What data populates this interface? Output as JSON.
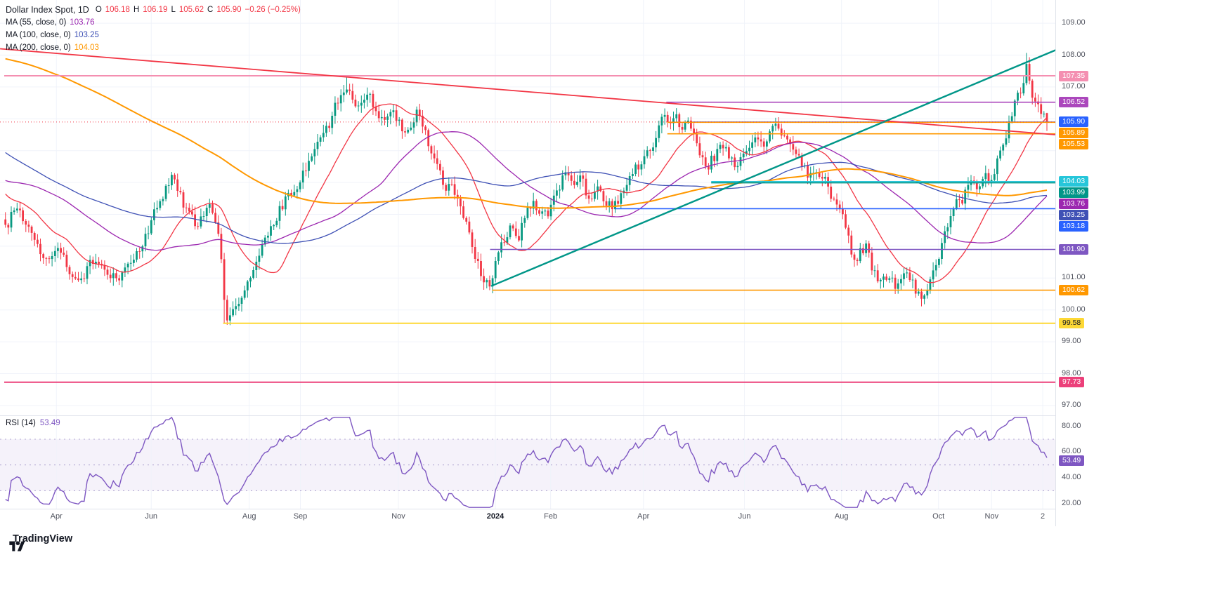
{
  "header": {
    "title": "Dollar Index Spot, 1D",
    "ohlc": [
      {
        "label": "O",
        "value": "106.18"
      },
      {
        "label": "H",
        "value": "106.19"
      },
      {
        "label": "L",
        "value": "105.62"
      },
      {
        "label": "C",
        "value": "105.90"
      }
    ],
    "change": "−0.26 (−0.25%)",
    "values_color": "#f23645",
    "change_color": "#f23645"
  },
  "indicators": [
    {
      "label": "MA (55, close, 0)",
      "value": "103.76",
      "color": "#9c27b0"
    },
    {
      "label": "MA (100, close, 0)",
      "value": "103.25",
      "color": "#3f51b5"
    },
    {
      "label": "MA (200, close, 0)",
      "value": "104.03",
      "color": "#ff9800"
    }
  ],
  "rsi_indicator": {
    "label": "RSI (14)",
    "value": "53.49",
    "color": "#7e57c2"
  },
  "footer": {
    "brand": "TradingView"
  },
  "chart_data": {
    "type": "candlestick",
    "title": "Dollar Index Spot",
    "interval": "1D",
    "last_candle": {
      "open": 106.18,
      "high": 106.19,
      "low": 105.62,
      "close": 105.9,
      "change": -0.26,
      "change_pct": -0.25
    },
    "price_axis": {
      "min": 96.69,
      "max": 109.73,
      "ticks": [
        "109.00",
        "108.00",
        "107.00",
        "101.00",
        "100.00",
        "99.00",
        "98.00",
        "97.00"
      ],
      "grid": [
        97,
        98,
        99,
        100,
        101,
        102,
        103,
        104,
        105,
        106,
        107,
        108,
        109
      ]
    },
    "time_axis": [
      {
        "label": "Apr",
        "f": 0.05
      },
      {
        "label": "Jun",
        "f": 0.141
      },
      {
        "label": "Aug",
        "f": 0.235
      },
      {
        "label": "Sep",
        "f": 0.284
      },
      {
        "label": "Nov",
        "f": 0.378
      },
      {
        "label": "2024",
        "f": 0.471,
        "major": true
      },
      {
        "label": "Feb",
        "f": 0.524
      },
      {
        "label": "Apr",
        "f": 0.613
      },
      {
        "label": "Jun",
        "f": 0.71
      },
      {
        "label": "Aug",
        "f": 0.803
      },
      {
        "label": "Oct",
        "f": 0.896
      },
      {
        "label": "Nov",
        "f": 0.947
      },
      {
        "label": "2",
        "f": 0.996
      }
    ],
    "levels": [
      {
        "price": 107.35,
        "color": "#f48fb1",
        "from": 0,
        "width": 2
      },
      {
        "price": 106.52,
        "color": "#ab47bc",
        "from": 0.635,
        "width": 1.6
      },
      {
        "price": 105.9,
        "color": "#2962ff",
        "from": 0.66,
        "width": 1.6
      },
      {
        "price": 105.89,
        "color": "#ff9800",
        "from": 0.636,
        "width": 1.6
      },
      {
        "price": 105.53,
        "color": "#ff9800",
        "from": 0.636,
        "width": 1.6
      },
      {
        "price": 104.03,
        "color": "#26c6da",
        "from": 0.678,
        "width": 1.6
      },
      {
        "price": 103.99,
        "color": "#009688",
        "from": 0.678,
        "width": 1.6
      },
      {
        "price": 103.18,
        "color": "#2962ff",
        "from": 0.586,
        "width": 1.6
      },
      {
        "price": 101.9,
        "color": "#7e57c2",
        "from": 0.466,
        "width": 1.6
      },
      {
        "price": 100.62,
        "color": "#ff9800",
        "from": 0.468,
        "width": 1.6
      },
      {
        "price": 99.58,
        "color": "#fdd835",
        "from": 0.21,
        "width": 2
      },
      {
        "price": 97.73,
        "color": "#ec407a",
        "from": 0,
        "width": 2
      }
    ],
    "price_line": {
      "price": 105.9,
      "color": "#f23645"
    },
    "trendlines": [
      {
        "color": "#f23645",
        "x1": -0.004,
        "p1": 108.2,
        "x2": 1.008,
        "p2": 105.5,
        "width": 1.8
      },
      {
        "color": "#009688",
        "x1": 0.467,
        "p1": 100.75,
        "x2": 1.015,
        "p2": 108.25,
        "width": 2.4
      }
    ],
    "moving_averages": [
      {
        "period": 20,
        "color": "#f23645",
        "width": 1.3
      },
      {
        "period": 55,
        "color": "#9c27b0",
        "width": 1.3
      },
      {
        "period": 100,
        "color": "#3f51b5",
        "width": 1.3
      },
      {
        "period": 200,
        "color": "#ff9800",
        "width": 2
      }
    ],
    "badges": [
      {
        "label": "107.35",
        "price": 107.35,
        "bg": "#f48fb1"
      },
      {
        "label": "106.52",
        "price": 106.52,
        "bg": "#ab47bc"
      },
      {
        "label": "105.90",
        "price": 105.9,
        "bg": "#2962ff"
      },
      {
        "label": "105.89",
        "price": 105.89,
        "bg": "#ff9800"
      },
      {
        "label": "105.53",
        "price": 105.53,
        "bg": "#ff9800"
      },
      {
        "label": "104.03",
        "price": 104.03,
        "bg": "#26c6da"
      },
      {
        "label": "103.99",
        "price": 103.99,
        "bg": "#009688"
      },
      {
        "label": "103.76",
        "price": 103.76,
        "bg": "#9c27b0"
      },
      {
        "label": "103.25",
        "price": 103.25,
        "bg": "#3f51b5"
      },
      {
        "label": "103.18",
        "price": 103.18,
        "bg": "#2962ff"
      },
      {
        "label": "101.90",
        "price": 101.9,
        "bg": "#7e57c2"
      },
      {
        "label": "100.62",
        "price": 100.62,
        "bg": "#ff9800"
      },
      {
        "label": "99.58",
        "price": 99.58,
        "bg": "#fdd835",
        "fg": "#131722"
      },
      {
        "label": "97.73",
        "price": 97.73,
        "bg": "#ec407a"
      }
    ],
    "rsi": {
      "period": 14,
      "last": 53.49,
      "color": "#7e57c2",
      "mid": 50,
      "band": {
        "upper": 70,
        "lower": 30,
        "fill": "rgba(126,87,194,0.08)"
      },
      "axis": {
        "min": 16,
        "max": 88,
        "ticks": [
          "80.00",
          "60.00",
          "40.00",
          "20.00"
        ]
      },
      "badge": {
        "label": "53.49",
        "bg": "#7e57c2"
      }
    },
    "prehistory_path": [
      [
        -0.62,
        104.5
      ],
      [
        -0.52,
        108.5
      ],
      [
        -0.44,
        111.2
      ],
      [
        -0.37,
        113.6
      ],
      [
        -0.31,
        111.4
      ],
      [
        -0.25,
        107.4
      ],
      [
        -0.19,
        104.7
      ],
      [
        -0.13,
        103.6
      ],
      [
        -0.09,
        104.6
      ],
      [
        -0.06,
        105.0
      ],
      [
        -0.04,
        103.7
      ],
      [
        -0.02,
        103.9
      ],
      [
        -0.006,
        103.1
      ]
    ],
    "price_path": [
      [
        0.004,
        102.7
      ],
      [
        0.012,
        103.35
      ],
      [
        0.025,
        102.4
      ],
      [
        0.04,
        101.6
      ],
      [
        0.052,
        101.95
      ],
      [
        0.062,
        101.2
      ],
      [
        0.072,
        100.9
      ],
      [
        0.085,
        101.55
      ],
      [
        0.098,
        101.25
      ],
      [
        0.11,
        100.95
      ],
      [
        0.122,
        101.45
      ],
      [
        0.133,
        102.1
      ],
      [
        0.143,
        103.0
      ],
      [
        0.152,
        103.55
      ],
      [
        0.16,
        104.2
      ],
      [
        0.168,
        103.7
      ],
      [
        0.177,
        102.95
      ],
      [
        0.187,
        102.7
      ],
      [
        0.196,
        103.35
      ],
      [
        0.203,
        102.8
      ],
      [
        0.208,
        101.6
      ],
      [
        0.212,
        99.8
      ],
      [
        0.22,
        99.95
      ],
      [
        0.23,
        100.45
      ],
      [
        0.238,
        101.15
      ],
      [
        0.247,
        101.9
      ],
      [
        0.256,
        102.55
      ],
      [
        0.264,
        103.15
      ],
      [
        0.272,
        103.5
      ],
      [
        0.284,
        104.05
      ],
      [
        0.293,
        104.75
      ],
      [
        0.302,
        105.25
      ],
      [
        0.312,
        105.85
      ],
      [
        0.32,
        106.6
      ],
      [
        0.329,
        107.05
      ],
      [
        0.334,
        106.7
      ],
      [
        0.341,
        106.25
      ],
      [
        0.349,
        106.75
      ],
      [
        0.356,
        106.3
      ],
      [
        0.363,
        105.85
      ],
      [
        0.371,
        106.35
      ],
      [
        0.377,
        106.05
      ],
      [
        0.384,
        105.45
      ],
      [
        0.391,
        105.95
      ],
      [
        0.397,
        106.25
      ],
      [
        0.404,
        105.55
      ],
      [
        0.41,
        105.0
      ],
      [
        0.417,
        104.45
      ],
      [
        0.423,
        103.85
      ],
      [
        0.428,
        104.25
      ],
      [
        0.434,
        103.5
      ],
      [
        0.441,
        102.9
      ],
      [
        0.448,
        102.1
      ],
      [
        0.454,
        101.5
      ],
      [
        0.459,
        101.0
      ],
      [
        0.466,
        100.8
      ],
      [
        0.472,
        101.5
      ],
      [
        0.479,
        102.25
      ],
      [
        0.486,
        102.55
      ],
      [
        0.492,
        102.1
      ],
      [
        0.5,
        102.95
      ],
      [
        0.507,
        103.35
      ],
      [
        0.514,
        103.1
      ],
      [
        0.522,
        103.05
      ],
      [
        0.53,
        103.75
      ],
      [
        0.537,
        104.2
      ],
      [
        0.546,
        103.9
      ],
      [
        0.554,
        104.1
      ],
      [
        0.561,
        103.45
      ],
      [
        0.568,
        103.85
      ],
      [
        0.576,
        103.5
      ],
      [
        0.583,
        103.15
      ],
      [
        0.59,
        103.55
      ],
      [
        0.598,
        104.05
      ],
      [
        0.604,
        104.35
      ],
      [
        0.611,
        104.6
      ],
      [
        0.618,
        105.1
      ],
      [
        0.626,
        105.35
      ],
      [
        0.632,
        106.25
      ],
      [
        0.637,
        105.95
      ],
      [
        0.643,
        106.1
      ],
      [
        0.65,
        105.65
      ],
      [
        0.657,
        105.85
      ],
      [
        0.664,
        105.35
      ],
      [
        0.669,
        104.75
      ],
      [
        0.676,
        104.55
      ],
      [
        0.683,
        104.95
      ],
      [
        0.69,
        105.2
      ],
      [
        0.697,
        104.8
      ],
      [
        0.703,
        104.55
      ],
      [
        0.708,
        104.7
      ],
      [
        0.714,
        105.2
      ],
      [
        0.721,
        105.45
      ],
      [
        0.728,
        105.15
      ],
      [
        0.734,
        105.55
      ],
      [
        0.739,
        105.9
      ],
      [
        0.745,
        105.6
      ],
      [
        0.752,
        105.25
      ],
      [
        0.759,
        104.9
      ],
      [
        0.766,
        104.5
      ],
      [
        0.772,
        104.2
      ],
      [
        0.779,
        104.45
      ],
      [
        0.786,
        104.1
      ],
      [
        0.792,
        103.7
      ],
      [
        0.799,
        103.3
      ],
      [
        0.805,
        102.9
      ],
      [
        0.811,
        102.15
      ],
      [
        0.816,
        101.35
      ],
      [
        0.821,
        101.8
      ],
      [
        0.827,
        102.0
      ],
      [
        0.832,
        101.4
      ],
      [
        0.838,
        100.95
      ],
      [
        0.843,
        101.2
      ],
      [
        0.849,
        101.0
      ],
      [
        0.855,
        100.7
      ],
      [
        0.861,
        100.95
      ],
      [
        0.866,
        101.2
      ],
      [
        0.871,
        100.85
      ],
      [
        0.877,
        100.45
      ],
      [
        0.882,
        100.35
      ],
      [
        0.887,
        100.8
      ],
      [
        0.893,
        101.35
      ],
      [
        0.899,
        102.05
      ],
      [
        0.905,
        102.6
      ],
      [
        0.912,
        103.3
      ],
      [
        0.918,
        103.45
      ],
      [
        0.924,
        103.85
      ],
      [
        0.93,
        104.1
      ],
      [
        0.936,
        103.8
      ],
      [
        0.941,
        104.35
      ],
      [
        0.946,
        104.05
      ],
      [
        0.951,
        104.55
      ],
      [
        0.956,
        105.1
      ],
      [
        0.961,
        105.5
      ],
      [
        0.966,
        106.2
      ],
      [
        0.971,
        106.6
      ],
      [
        0.976,
        107.05
      ],
      [
        0.98,
        107.65
      ],
      [
        0.984,
        106.95
      ],
      [
        0.988,
        106.6
      ],
      [
        0.992,
        106.35
      ],
      [
        0.996,
        106.2
      ],
      [
        1.0,
        105.9
      ]
    ],
    "force_points": [
      {
        "f": 0.212,
        "low": 99.58
      },
      {
        "f": 0.329,
        "high": 107.35
      },
      {
        "f": 0.466,
        "low": 100.62
      },
      {
        "f": 0.882,
        "low": 100.18
      },
      {
        "f": 0.98,
        "high": 108.07
      },
      {
        "f": 1.0,
        "open": 106.18,
        "high": 106.19,
        "low": 105.62,
        "close": 105.9
      }
    ]
  }
}
